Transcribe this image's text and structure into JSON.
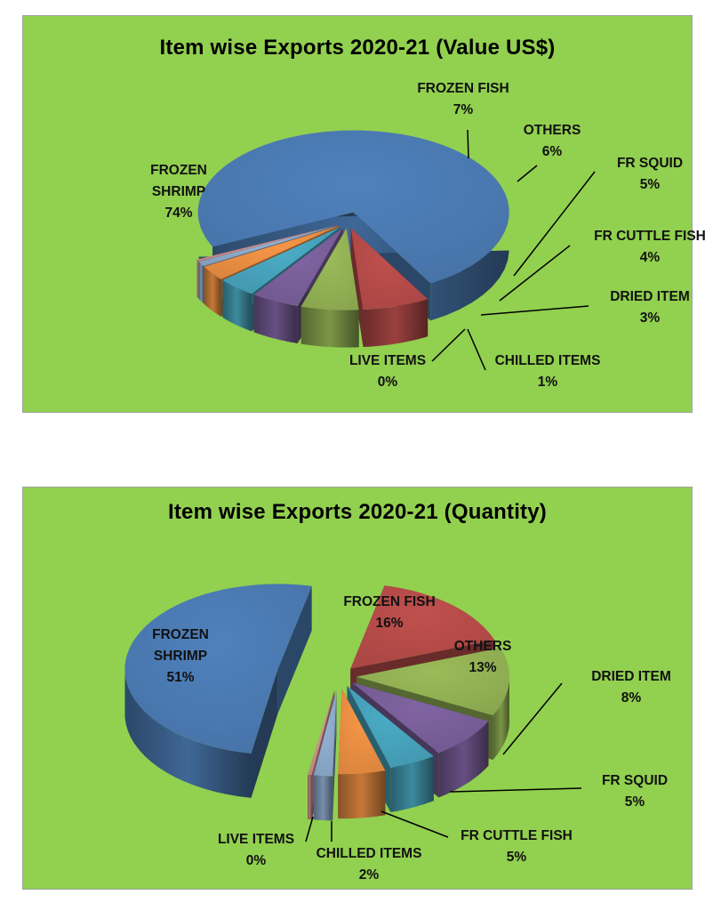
{
  "chart_data": [
    {
      "type": "pie",
      "title": "Item wise Exports 2020-21 (Value US$)",
      "slices": [
        {
          "name": "FROZEN SHRIMP",
          "label": "FROZEN\nSHRIMP",
          "pct_label": "74%",
          "value": 74,
          "color": "#4f81bd"
        },
        {
          "name": "FROZEN FISH",
          "label": "FROZEN FISH",
          "pct_label": "7%",
          "value": 7,
          "color": "#c0504d"
        },
        {
          "name": "OTHERS",
          "label": "OTHERS",
          "pct_label": "6%",
          "value": 6,
          "color": "#9bbb59"
        },
        {
          "name": "FR SQUID",
          "label": "FR SQUID",
          "pct_label": "5%",
          "value": 5,
          "color": "#8064a2"
        },
        {
          "name": "FR CUTTLE FISH",
          "label": "FR CUTTLE FISH",
          "pct_label": "4%",
          "value": 4,
          "color": "#4bacc6"
        },
        {
          "name": "DRIED ITEM",
          "label": "DRIED ITEM",
          "pct_label": "3%",
          "value": 3,
          "color": "#f79646"
        },
        {
          "name": "CHILLED ITEMS",
          "label": "CHILLED ITEMS",
          "pct_label": "1%",
          "value": 1,
          "color": "#95b3d7"
        },
        {
          "name": "LIVE ITEMS",
          "label": "LIVE ITEMS",
          "pct_label": "0%",
          "value": 0.4,
          "color": "#d99694"
        }
      ]
    },
    {
      "type": "pie",
      "title": "Item wise Exports 2020-21 (Quantity)",
      "slices": [
        {
          "name": "FROZEN SHRIMP",
          "label": "FROZEN\nSHRIMP",
          "pct_label": "51%",
          "value": 51,
          "color": "#4f81bd"
        },
        {
          "name": "FROZEN FISH",
          "label": "FROZEN FISH",
          "pct_label": "16%",
          "value": 16,
          "color": "#c0504d"
        },
        {
          "name": "OTHERS",
          "label": "OTHERS",
          "pct_label": "13%",
          "value": 13,
          "color": "#9bbb59"
        },
        {
          "name": "DRIED ITEM",
          "label": "DRIED ITEM",
          "pct_label": "8%",
          "value": 8,
          "color": "#8064a2"
        },
        {
          "name": "FR SQUID",
          "label": "FR SQUID",
          "pct_label": "5%",
          "value": 5,
          "color": "#4bacc6"
        },
        {
          "name": "FR CUTTLE FISH",
          "label": "FR CUTTLE FISH",
          "pct_label": "5%",
          "value": 5,
          "color": "#f79646"
        },
        {
          "name": "CHILLED ITEMS",
          "label": "CHILLED ITEMS",
          "pct_label": "2%",
          "value": 2,
          "color": "#95b3d7"
        },
        {
          "name": "LIVE ITEMS",
          "label": "LIVE ITEMS",
          "pct_label": "0%",
          "value": 0.4,
          "color": "#d99694"
        }
      ]
    }
  ]
}
